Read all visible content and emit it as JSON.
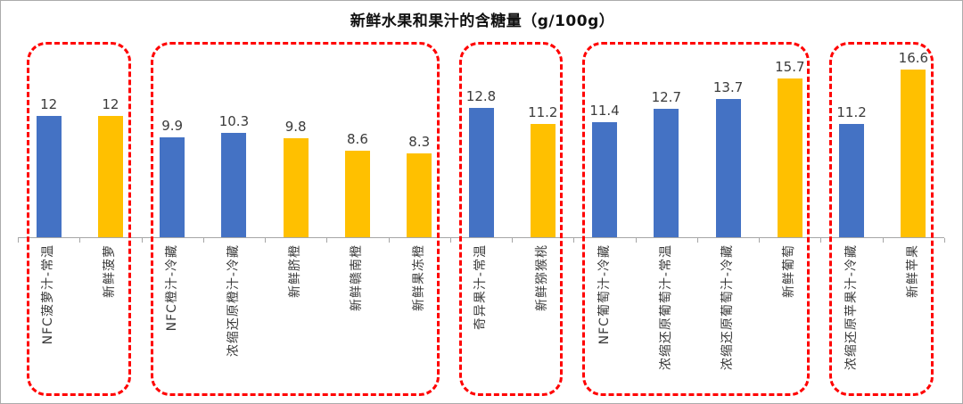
{
  "chart": {
    "title": "新鲜水果和果汁的含糖量（g/100g）",
    "colors": {
      "juice_bar_blue": "#4472C4",
      "fresh_fruit_bar_yellow": "#FFC000",
      "group_outline_red": "#FF0000",
      "axis_gray": "#A6A6A6",
      "text_gray": "#3B3B3B"
    }
  },
  "chart_data": {
    "type": "bar",
    "title": "新鲜水果和果汁的含糖量（g/100g）",
    "unit": "g/100g",
    "categories": [
      "NFC菠萝汁-常温",
      "新鲜菠萝",
      "NFC橙汁-冷藏",
      "浓缩还原橙汁-冷藏",
      "新鲜脐橙",
      "新鲜赣南橙",
      "新鲜果冻橙",
      "奇异果汁-常温",
      "新鲜猕猴桃",
      "NFC葡萄汁-冷藏",
      "浓缩还原葡萄汁-常温",
      "浓缩还原葡萄汁-冷藏",
      "新鲜葡萄",
      "浓缩还原苹果汁-冷藏",
      "新鲜苹果"
    ],
    "values": [
      12,
      12,
      9.9,
      10.3,
      9.8,
      8.6,
      8.3,
      12.8,
      11.2,
      11.4,
      12.7,
      13.7,
      15.7,
      11.2,
      16.6
    ],
    "value_labels": [
      "12",
      "12",
      "9.9",
      "10.3",
      "9.8",
      "8.6",
      "8.3",
      "12.8",
      "11.2",
      "11.4",
      "12.7",
      "13.7",
      "15.7",
      "11.2",
      "16.6"
    ],
    "bar_colors": [
      "#4472C4",
      "#FFC000",
      "#4472C4",
      "#4472C4",
      "#FFC000",
      "#FFC000",
      "#FFC000",
      "#4472C4",
      "#FFC000",
      "#4472C4",
      "#4472C4",
      "#4472C4",
      "#FFC000",
      "#4472C4",
      "#FFC000"
    ],
    "groups": [
      {
        "start": 0,
        "end": 1
      },
      {
        "start": 2,
        "end": 6
      },
      {
        "start": 7,
        "end": 8
      },
      {
        "start": 9,
        "end": 12
      },
      {
        "start": 13,
        "end": 14
      }
    ],
    "ylim": [
      0,
      17.5
    ],
    "grid": false,
    "legend": "none",
    "x_axis": {
      "tick_marks": true
    }
  }
}
